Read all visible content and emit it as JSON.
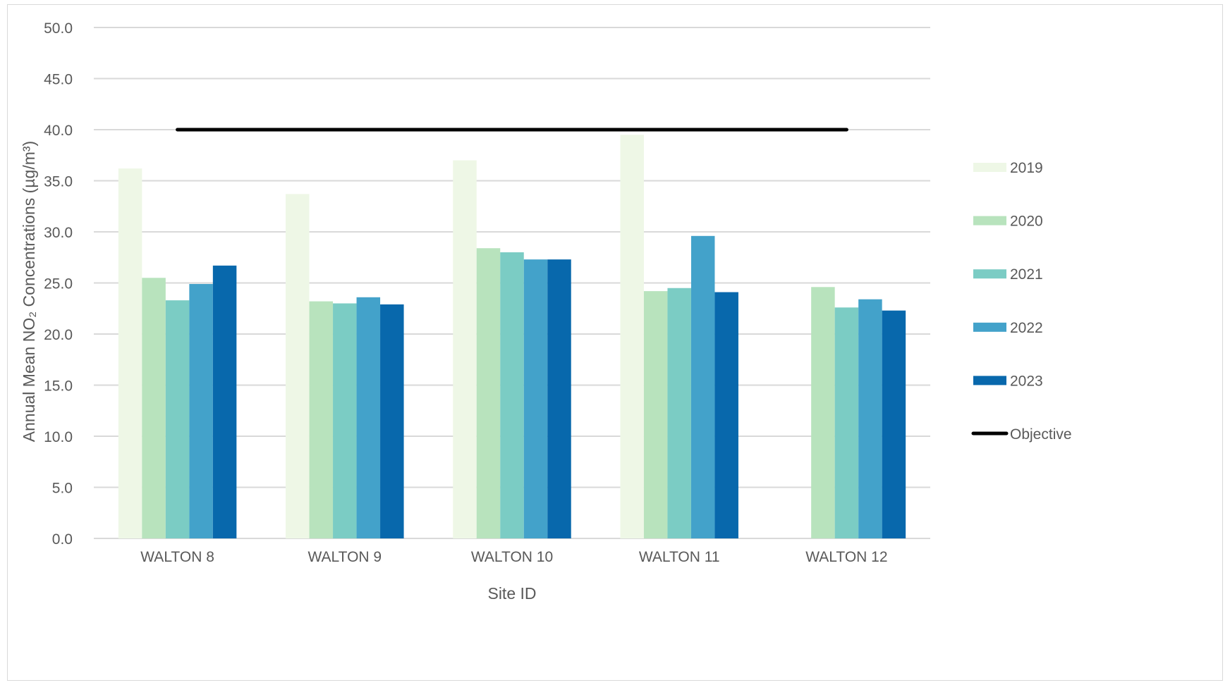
{
  "chart_data": {
    "type": "bar",
    "title": "",
    "xlabel": "Site ID",
    "ylabel": "Annual Mean NO₂ Concentrations (µg/m³)",
    "ylim": [
      0,
      50
    ],
    "yticks": [
      "0.0",
      "5.0",
      "10.0",
      "15.0",
      "20.0",
      "25.0",
      "30.0",
      "35.0",
      "40.0",
      "45.0",
      "50.0"
    ],
    "grid": true,
    "legend_position": "right",
    "categories": [
      "WALTON 8",
      "WALTON 9",
      "WALTON 10",
      "WALTON 11",
      "WALTON 12"
    ],
    "series": [
      {
        "name": "2019",
        "color": "#eef7e6",
        "values": [
          36.2,
          33.7,
          37.0,
          39.5,
          null
        ]
      },
      {
        "name": "2020",
        "color": "#b8e3bd",
        "values": [
          25.5,
          23.2,
          28.4,
          24.2,
          24.6
        ]
      },
      {
        "name": "2021",
        "color": "#7bccc4",
        "values": [
          23.3,
          23.0,
          28.0,
          24.5,
          22.6
        ]
      },
      {
        "name": "2022",
        "color": "#43a2ca",
        "values": [
          24.9,
          23.6,
          27.3,
          29.6,
          23.4
        ]
      },
      {
        "name": "2023",
        "color": "#0868ac",
        "values": [
          26.7,
          22.9,
          27.3,
          24.1,
          22.3
        ]
      }
    ],
    "objective": {
      "name": "Objective",
      "value": 40.0,
      "color": "#000000"
    }
  }
}
